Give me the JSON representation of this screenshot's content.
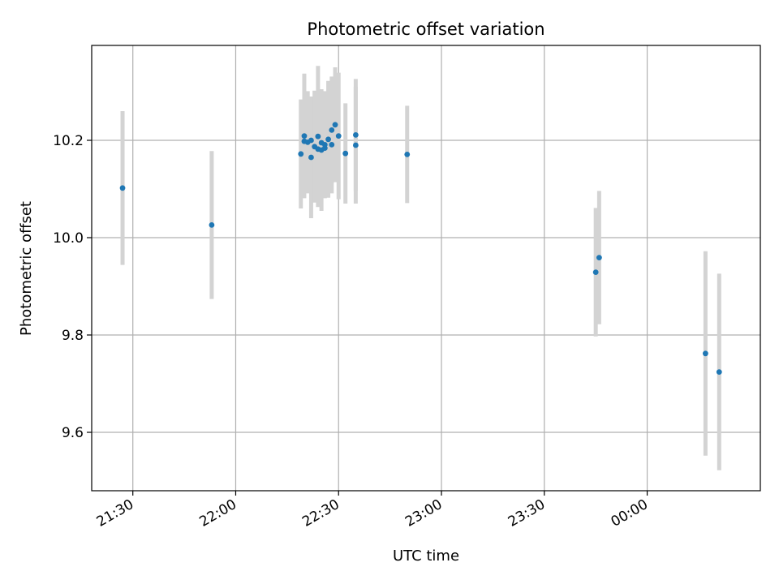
{
  "chart_data": {
    "type": "scatter",
    "title": "Photometric offset variation",
    "xlabel": "UTC time",
    "ylabel": "Photometric offset",
    "x_ticks": [
      "21:30",
      "22:00",
      "22:30",
      "23:00",
      "23:30",
      "00:00"
    ],
    "y_ticks": [
      "9.6",
      "9.8",
      "10.0",
      "10.2"
    ],
    "x_range": [
      "21:18",
      "00:33"
    ],
    "ylim": [
      9.48,
      10.395
    ],
    "grid": true,
    "colors": {
      "point": "#1f77b4",
      "errorbar": "#d3d3d3",
      "grid": "#b0b0b0"
    },
    "points": [
      {
        "t": "21:27",
        "y": 10.102,
        "err": 0.158
      },
      {
        "t": "21:53",
        "y": 10.026,
        "err": 0.152
      },
      {
        "t": "22:19",
        "y": 10.172,
        "err": 0.112
      },
      {
        "t": "22:20",
        "y": 10.198,
        "err": 0.085
      },
      {
        "t": "22:20",
        "y": 10.209,
        "err": 0.128
      },
      {
        "t": "22:21",
        "y": 10.196,
        "err": 0.105
      },
      {
        "t": "22:22",
        "y": 10.2,
        "err": 0.09
      },
      {
        "t": "22:22",
        "y": 10.165,
        "err": 0.125
      },
      {
        "t": "22:23",
        "y": 10.187,
        "err": 0.115
      },
      {
        "t": "22:24",
        "y": 10.182,
        "err": 0.1
      },
      {
        "t": "22:24",
        "y": 10.208,
        "err": 0.145
      },
      {
        "t": "22:25",
        "y": 10.18,
        "err": 0.125
      },
      {
        "t": "22:25",
        "y": 10.195,
        "err": 0.1
      },
      {
        "t": "22:26",
        "y": 10.191,
        "err": 0.11
      },
      {
        "t": "22:26",
        "y": 10.184,
        "err": 0.09
      },
      {
        "t": "22:27",
        "y": 10.202,
        "err": 0.12
      },
      {
        "t": "22:28",
        "y": 10.191,
        "err": 0.1
      },
      {
        "t": "22:28",
        "y": 10.221,
        "err": 0.11
      },
      {
        "t": "22:29",
        "y": 10.232,
        "err": 0.118
      },
      {
        "t": "22:30",
        "y": 10.209,
        "err": 0.13
      },
      {
        "t": "22:32",
        "y": 10.173,
        "err": 0.103
      },
      {
        "t": "22:35",
        "y": 10.19,
        "err": 0.12
      },
      {
        "t": "22:35",
        "y": 10.211,
        "err": 0.115
      },
      {
        "t": "22:50",
        "y": 10.171,
        "err": 0.1
      },
      {
        "t": "23:45",
        "y": 9.929,
        "err": 0.132
      },
      {
        "t": "23:46",
        "y": 9.959,
        "err": 0.137
      },
      {
        "t": "00:17",
        "y": 9.762,
        "err": 0.21
      },
      {
        "t": "00:21",
        "y": 9.724,
        "err": 0.202
      }
    ]
  }
}
